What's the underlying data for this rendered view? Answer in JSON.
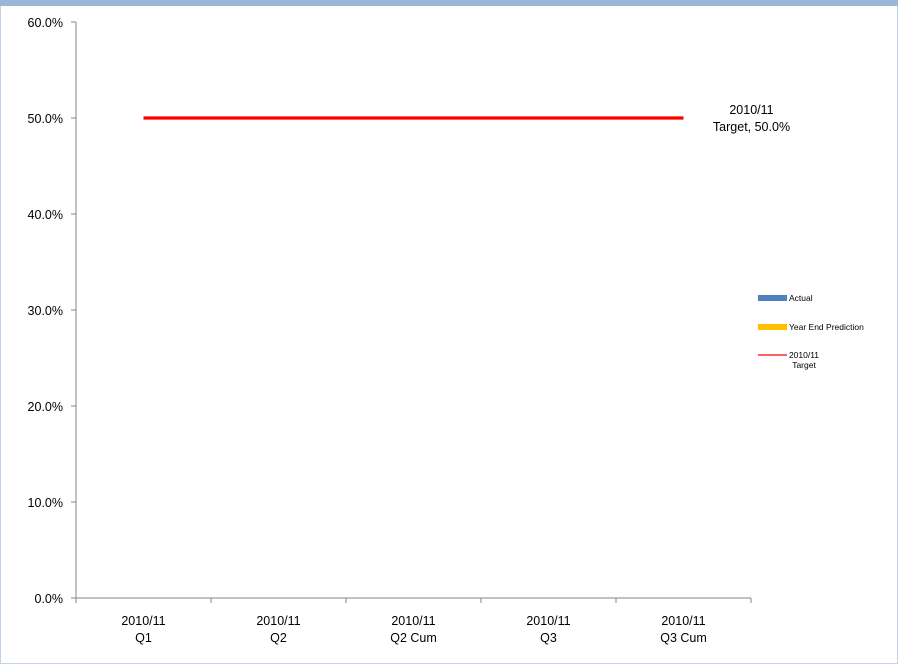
{
  "chart_data": {
    "type": "line",
    "title": "",
    "xlabel": "",
    "ylabel": "",
    "categories": [
      [
        "2010/11",
        "Q1"
      ],
      [
        "2010/11",
        "Q2"
      ],
      [
        "2010/11",
        "Q2 Cum"
      ],
      [
        "2010/11",
        "Q3"
      ],
      [
        "2010/11",
        "Q3 Cum"
      ]
    ],
    "ylim": [
      0,
      60
    ],
    "y_ticks": [
      "0.0%",
      "10.0%",
      "20.0%",
      "30.0%",
      "40.0%",
      "50.0%",
      "60.0%"
    ],
    "y_format": "percent",
    "grid": false,
    "legend_position": "right",
    "series": [
      {
        "name": "Actual",
        "kind": "bar",
        "color": "#4f81bd",
        "values": [
          null,
          null,
          null,
          null,
          null
        ]
      },
      {
        "name": "Year End Prediction",
        "kind": "bar",
        "color": "#ffc000",
        "values": [
          null,
          null,
          null,
          null,
          null
        ]
      },
      {
        "name": "2010/11 Target",
        "kind": "line",
        "color": "#ff0000",
        "values": [
          50,
          50,
          50,
          50,
          50
        ]
      }
    ],
    "annotations": [
      {
        "series": "2010/11 Target",
        "lines": [
          "2010/11",
          "Target, 50.0%"
        ]
      }
    ],
    "legend": [
      {
        "label_lines": [
          "Actual"
        ],
        "swatch": "bar",
        "color": "#4f81bd"
      },
      {
        "label_lines": [
          "Year End Prediction"
        ],
        "swatch": "bar",
        "color": "#ffc000"
      },
      {
        "label_lines": [
          "2010/11",
          "Target"
        ],
        "swatch": "line",
        "color": "#ff0000"
      }
    ]
  }
}
